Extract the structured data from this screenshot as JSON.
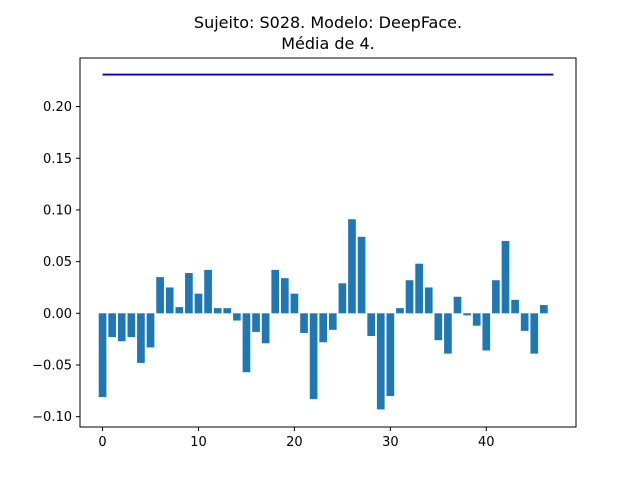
{
  "chart_data": {
    "type": "bar",
    "title_line1": "Sujeito: S028. Modelo: DeepFace.",
    "title_line2": "Média de 4.",
    "xlabel": "",
    "ylabel": "",
    "x": [
      0,
      1,
      2,
      3,
      4,
      5,
      6,
      7,
      8,
      9,
      10,
      11,
      12,
      13,
      14,
      15,
      16,
      17,
      18,
      19,
      20,
      21,
      22,
      23,
      24,
      25,
      26,
      27,
      28,
      29,
      30,
      31,
      32,
      33,
      34,
      35,
      36,
      37,
      38,
      39,
      40,
      41,
      42,
      43,
      44,
      45,
      46
    ],
    "values": [
      -0.081,
      -0.023,
      -0.027,
      -0.023,
      -0.048,
      -0.033,
      0.035,
      0.025,
      0.006,
      0.039,
      0.019,
      0.042,
      0.005,
      0.005,
      -0.007,
      -0.057,
      -0.018,
      -0.029,
      0.042,
      0.034,
      0.019,
      -0.019,
      -0.083,
      -0.028,
      -0.016,
      0.029,
      0.091,
      0.074,
      -0.022,
      -0.093,
      -0.08,
      0.005,
      0.032,
      0.048,
      0.025,
      -0.026,
      -0.039,
      0.016,
      -0.002,
      -0.012,
      -0.036,
      0.032,
      0.07,
      0.013,
      -0.017,
      -0.039,
      0.008
    ],
    "bar_color": "#1f77b4",
    "reference_line": {
      "value": 0.231,
      "x_start": 0,
      "x_end": 47,
      "color": "#0000cc"
    },
    "xlim": [
      -2.35,
      49.35
    ],
    "ylim": [
      -0.11,
      0.247
    ],
    "xticks": [
      0,
      10,
      20,
      30,
      40
    ],
    "xtick_labels": [
      "0",
      "10",
      "20",
      "30",
      "40"
    ],
    "yticks": [
      -0.1,
      -0.05,
      0.0,
      0.05,
      0.1,
      0.15,
      0.2
    ],
    "ytick_labels": [
      "−0.10",
      "−0.05",
      "0.00",
      "0.05",
      "0.10",
      "0.15",
      "0.20"
    ],
    "grid": false,
    "legend": "none"
  }
}
